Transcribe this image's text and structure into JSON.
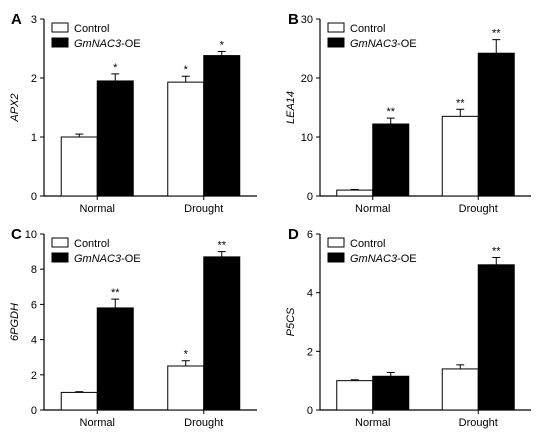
{
  "chart_data": [
    {
      "panel_label": "A",
      "type": "bar",
      "ylabel": "APX2",
      "xlabel": "",
      "ylim": [
        0,
        3
      ],
      "yticks": [
        "0",
        "1",
        "2",
        "3"
      ],
      "categories": [
        "Normal",
        "Drought"
      ],
      "legend": {
        "placement": "top-left"
      },
      "series": [
        {
          "name": "Control",
          "values": [
            1.0,
            1.93
          ],
          "errors": [
            0.05,
            0.1
          ],
          "sig": [
            "",
            "*"
          ]
        },
        {
          "name": "GmNAC3-OE",
          "values": [
            1.95,
            2.38
          ],
          "errors": [
            0.12,
            0.07
          ],
          "sig": [
            "*",
            "*"
          ]
        }
      ]
    },
    {
      "panel_label": "B",
      "type": "bar",
      "ylabel": "LEA14",
      "xlabel": "",
      "ylim": [
        0,
        30
      ],
      "yticks": [
        "0",
        "10",
        "20",
        "30"
      ],
      "categories": [
        "Normal",
        "Drought"
      ],
      "legend": {
        "placement": "top-left"
      },
      "series": [
        {
          "name": "Control",
          "values": [
            1.0,
            13.5
          ],
          "errors": [
            0.1,
            1.2
          ],
          "sig": [
            "",
            "**"
          ]
        },
        {
          "name": "GmNAC3-OE",
          "values": [
            12.2,
            24.2
          ],
          "errors": [
            1.0,
            2.3
          ],
          "sig": [
            "**",
            "**"
          ]
        }
      ]
    },
    {
      "panel_label": "C",
      "type": "bar",
      "ylabel": "6PGDH",
      "xlabel": "",
      "ylim": [
        0,
        10
      ],
      "yticks": [
        "0",
        "2",
        "4",
        "6",
        "8",
        "10"
      ],
      "categories": [
        "Normal",
        "Drought"
      ],
      "legend": {
        "placement": "top-left"
      },
      "series": [
        {
          "name": "Control",
          "values": [
            1.0,
            2.5
          ],
          "errors": [
            0.04,
            0.3
          ],
          "sig": [
            "",
            "*"
          ]
        },
        {
          "name": "GmNAC3-OE",
          "values": [
            5.8,
            8.7
          ],
          "errors": [
            0.5,
            0.3
          ],
          "sig": [
            "**",
            "**"
          ]
        }
      ]
    },
    {
      "panel_label": "D",
      "type": "bar",
      "ylabel": "P5CS",
      "xlabel": "",
      "ylim": [
        0,
        6
      ],
      "yticks": [
        "0",
        "2",
        "4",
        "6"
      ],
      "categories": [
        "Normal",
        "Drought"
      ],
      "legend": {
        "placement": "top-left"
      },
      "series": [
        {
          "name": "Control",
          "values": [
            1.0,
            1.4
          ],
          "errors": [
            0.03,
            0.14
          ],
          "sig": [
            "",
            ""
          ]
        },
        {
          "name": "GmNAC3-OE",
          "values": [
            1.15,
            4.95
          ],
          "errors": [
            0.13,
            0.25
          ],
          "sig": [
            "",
            "**"
          ]
        }
      ]
    }
  ],
  "colors": {
    "control_fill": "#ffffff",
    "oe_fill": "#000000",
    "axis": "#000000"
  },
  "legend_text": {
    "control": "Control",
    "oe_gene": "GmNAC3",
    "oe_suffix": "-OE"
  }
}
